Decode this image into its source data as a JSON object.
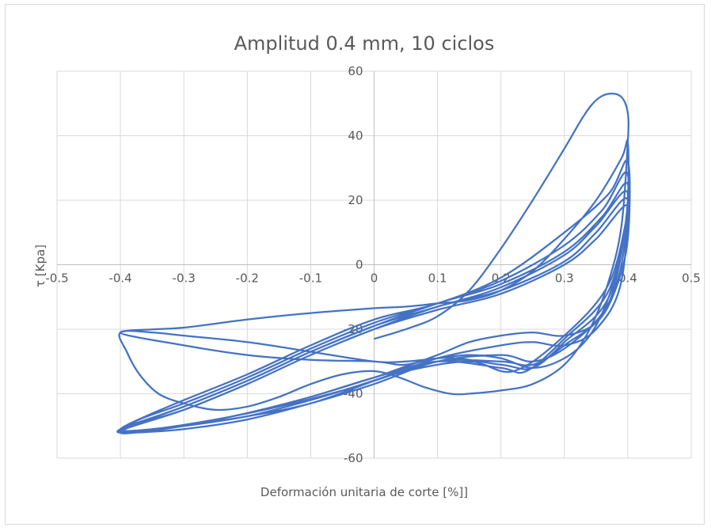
{
  "chart_data": {
    "type": "line",
    "title": "Amplitud 0.4 mm, 10 ciclos",
    "xlabel": "Deformación unitaria de corte [%]]",
    "ylabel": "τ [Kpa]",
    "xlim": [
      -0.5,
      0.5
    ],
    "ylim": [
      -60,
      60
    ],
    "x_ticks": [
      "-0.5",
      "-0.4",
      "-0.3",
      "-0.2",
      "-0.1",
      "0",
      "0.1",
      "0.2",
      "0.3",
      "0.4",
      "0.5"
    ],
    "y_ticks": [
      "60",
      "40",
      "20",
      "0",
      "-20",
      "-40",
      "-60"
    ],
    "grid": true,
    "line_color": "#4472c4",
    "series": [
      {
        "points": [
          [
            0.0,
            -23
          ],
          [
            0.05,
            -20
          ],
          [
            0.1,
            -16
          ],
          [
            0.15,
            -8
          ],
          [
            0.2,
            5
          ],
          [
            0.25,
            20
          ],
          [
            0.3,
            36
          ],
          [
            0.33,
            46
          ],
          [
            0.35,
            51
          ],
          [
            0.37,
            53
          ],
          [
            0.39,
            52
          ],
          [
            0.4,
            47
          ],
          [
            0.4,
            38
          ],
          [
            0.39,
            12
          ],
          [
            0.37,
            -5
          ],
          [
            0.34,
            -20
          ],
          [
            0.3,
            -31
          ],
          [
            0.25,
            -37
          ],
          [
            0.2,
            -39
          ],
          [
            0.15,
            -40
          ],
          [
            0.12,
            -40
          ],
          [
            0.08,
            -38
          ],
          [
            0.04,
            -35
          ],
          [
            0.0,
            -33
          ],
          [
            -0.05,
            -34
          ],
          [
            -0.1,
            -37
          ],
          [
            -0.15,
            -41
          ],
          [
            -0.2,
            -44
          ],
          [
            -0.25,
            -45
          ],
          [
            -0.3,
            -43
          ],
          [
            -0.34,
            -40
          ],
          [
            -0.37,
            -34
          ],
          [
            -0.39,
            -27
          ],
          [
            -0.4,
            -21
          ],
          [
            -0.35,
            -21
          ],
          [
            -0.3,
            -22
          ],
          [
            -0.2,
            -24
          ],
          [
            -0.1,
            -27
          ],
          [
            0.0,
            -30
          ],
          [
            0.05,
            -30
          ],
          [
            0.1,
            -29
          ],
          [
            0.15,
            -28
          ],
          [
            0.2,
            -29
          ],
          [
            0.25,
            -32
          ],
          [
            0.3,
            -29
          ],
          [
            0.34,
            -22
          ],
          [
            0.37,
            -10
          ],
          [
            0.39,
            5
          ],
          [
            0.4,
            20
          ],
          [
            0.4,
            38
          ],
          [
            0.39,
            33
          ],
          [
            0.35,
            20
          ],
          [
            0.3,
            8
          ],
          [
            0.25,
            -2
          ],
          [
            0.2,
            -8
          ],
          [
            0.15,
            -11
          ],
          [
            0.1,
            -12
          ],
          [
            0.05,
            -13
          ],
          [
            0.0,
            -13.5
          ],
          [
            -0.1,
            -15
          ],
          [
            -0.2,
            -17
          ],
          [
            -0.3,
            -19.5
          ],
          [
            -0.4,
            -21
          ],
          [
            -0.3,
            -25
          ],
          [
            -0.2,
            -28
          ],
          [
            -0.1,
            -29.5
          ],
          [
            0.0,
            -30
          ],
          [
            0.05,
            -31
          ],
          [
            0.1,
            -28
          ],
          [
            0.15,
            -24
          ],
          [
            0.2,
            -22
          ],
          [
            0.25,
            -21
          ],
          [
            0.3,
            -22
          ],
          [
            0.35,
            -18
          ],
          [
            0.38,
            -8
          ],
          [
            0.4,
            8
          ],
          [
            0.4,
            32
          ],
          [
            0.37,
            22
          ],
          [
            0.3,
            10
          ],
          [
            0.2,
            -4
          ],
          [
            0.1,
            -12
          ],
          [
            0.0,
            -17
          ],
          [
            -0.1,
            -25
          ],
          [
            -0.2,
            -34
          ],
          [
            -0.3,
            -42
          ],
          [
            -0.36,
            -47
          ],
          [
            -0.4,
            -51
          ],
          [
            -0.38,
            -52
          ],
          [
            -0.3,
            -50
          ],
          [
            -0.2,
            -47
          ],
          [
            -0.1,
            -43
          ],
          [
            0.0,
            -36
          ],
          [
            0.1,
            -29
          ],
          [
            0.2,
            -25
          ],
          [
            0.25,
            -24
          ],
          [
            0.3,
            -25
          ],
          [
            0.35,
            -20
          ],
          [
            0.39,
            -5
          ],
          [
            0.4,
            28
          ],
          [
            0.36,
            17
          ],
          [
            0.3,
            6
          ],
          [
            0.2,
            -5
          ],
          [
            0.1,
            -12
          ],
          [
            0.0,
            -18
          ],
          [
            -0.1,
            -26
          ],
          [
            -0.2,
            -35
          ],
          [
            -0.3,
            -43
          ],
          [
            -0.37,
            -48
          ],
          [
            -0.4,
            -52
          ],
          [
            -0.37,
            -52
          ],
          [
            -0.3,
            -51
          ],
          [
            -0.2,
            -48
          ],
          [
            -0.1,
            -43
          ],
          [
            0.0,
            -37
          ],
          [
            0.1,
            -30
          ],
          [
            0.2,
            -28
          ],
          [
            0.25,
            -30
          ],
          [
            0.3,
            -26
          ],
          [
            0.36,
            -15
          ],
          [
            0.39,
            0
          ],
          [
            0.4,
            25
          ],
          [
            0.36,
            15
          ],
          [
            0.3,
            4
          ],
          [
            0.2,
            -6
          ],
          [
            0.1,
            -12
          ],
          [
            0.0,
            -19
          ],
          [
            -0.1,
            -27
          ],
          [
            -0.2,
            -36
          ],
          [
            -0.3,
            -44
          ],
          [
            -0.37,
            -49
          ],
          [
            -0.4,
            -52
          ],
          [
            -0.37,
            -51.5
          ],
          [
            -0.3,
            -50
          ],
          [
            -0.2,
            -47
          ],
          [
            -0.1,
            -42
          ],
          [
            0.0,
            -36
          ],
          [
            0.1,
            -30
          ],
          [
            0.2,
            -30
          ],
          [
            0.25,
            -31
          ],
          [
            0.3,
            -25
          ],
          [
            0.37,
            -12
          ],
          [
            0.4,
            22
          ],
          [
            0.35,
            12
          ],
          [
            0.3,
            3
          ],
          [
            0.2,
            -7
          ],
          [
            0.1,
            -13
          ],
          [
            0.0,
            -19
          ],
          [
            -0.1,
            -27
          ],
          [
            -0.2,
            -36
          ],
          [
            -0.3,
            -44
          ],
          [
            -0.4,
            -51
          ],
          [
            -0.38,
            -52
          ],
          [
            -0.3,
            -50
          ],
          [
            -0.2,
            -46
          ],
          [
            -0.1,
            -41
          ],
          [
            0.0,
            -35
          ],
          [
            0.1,
            -29
          ],
          [
            0.2,
            -31
          ],
          [
            0.25,
            -32
          ],
          [
            0.3,
            -24
          ],
          [
            0.37,
            -10
          ],
          [
            0.4,
            20
          ],
          [
            0.35,
            10
          ],
          [
            0.3,
            1
          ],
          [
            0.2,
            -8
          ],
          [
            0.1,
            -13
          ],
          [
            0.0,
            -20
          ],
          [
            -0.1,
            -28
          ],
          [
            -0.2,
            -37
          ],
          [
            -0.3,
            -45
          ],
          [
            -0.4,
            -51.5
          ],
          [
            -0.36,
            -51.5
          ],
          [
            -0.3,
            -50
          ],
          [
            -0.2,
            -46
          ],
          [
            -0.1,
            -41
          ],
          [
            0.0,
            -35
          ],
          [
            0.1,
            -30
          ],
          [
            0.2,
            -32
          ],
          [
            0.24,
            -33
          ],
          [
            0.3,
            -23
          ],
          [
            0.37,
            -8
          ],
          [
            0.4,
            18
          ],
          [
            0.35,
            8
          ],
          [
            0.3,
            0
          ],
          [
            0.2,
            -9
          ],
          [
            0.1,
            -14
          ],
          [
            0.0,
            -20
          ],
          [
            -0.1,
            -28
          ],
          [
            -0.2,
            -37
          ],
          [
            -0.3,
            -45
          ],
          [
            -0.4,
            -51
          ],
          [
            -0.35,
            -51
          ],
          [
            -0.25,
            -48
          ],
          [
            -0.15,
            -44
          ],
          [
            -0.05,
            -39
          ],
          [
            0.05,
            -33
          ],
          [
            0.15,
            -30
          ],
          [
            0.22,
            -33
          ],
          [
            0.3,
            -22
          ],
          [
            0.37,
            -6
          ],
          [
            0.4,
            16
          ]
        ]
      }
    ]
  }
}
